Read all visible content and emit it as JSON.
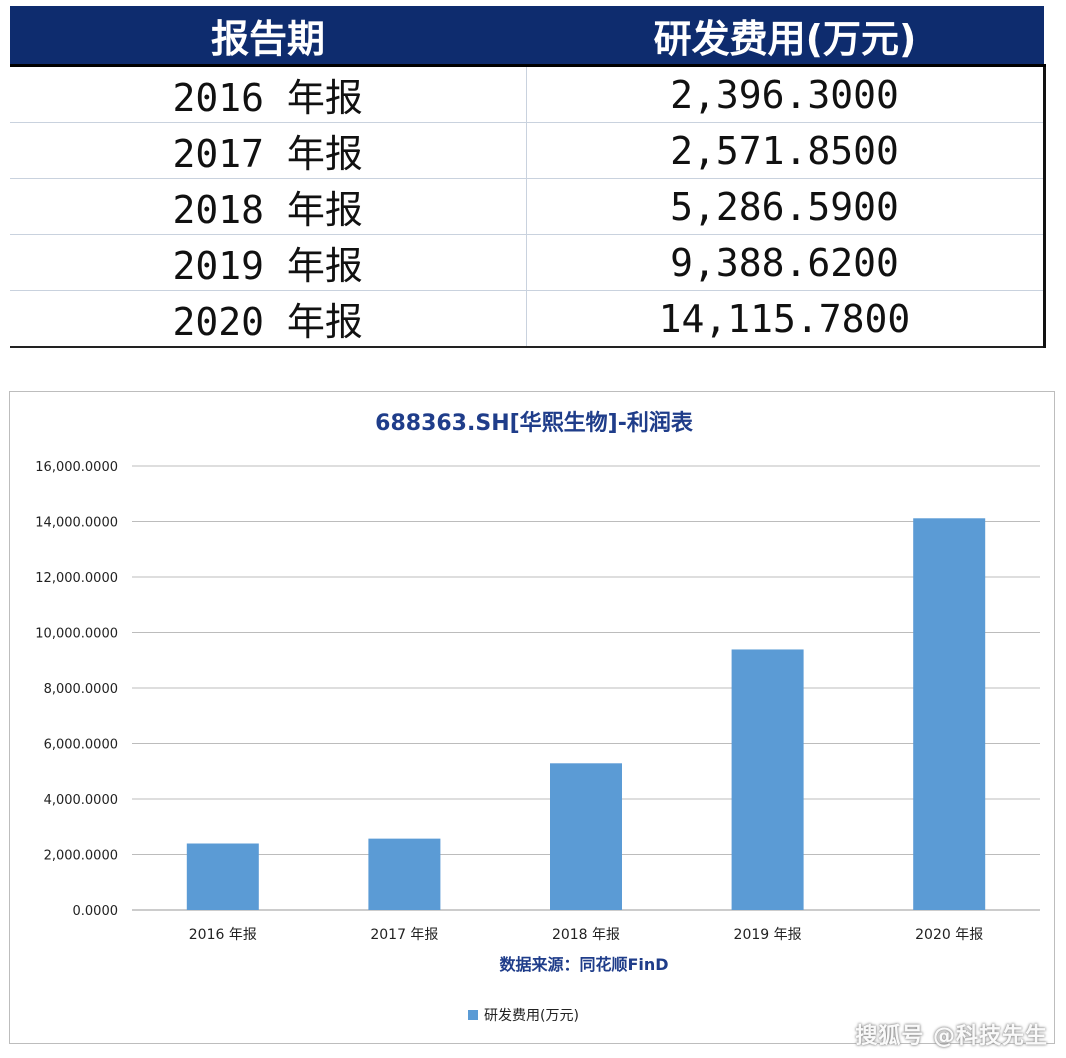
{
  "table": {
    "headers": [
      "报告期",
      "研发费用(万元)"
    ],
    "rows": [
      {
        "period": "2016 年报",
        "value": "2,396.3000"
      },
      {
        "period": "2017 年报",
        "value": "2,571.8500"
      },
      {
        "period": "2018 年报",
        "value": "5,286.5900"
      },
      {
        "period": "2019 年报",
        "value": "9,388.6200"
      },
      {
        "period": "2020 年报",
        "value": "14,115.7800"
      }
    ]
  },
  "chart_data": {
    "type": "bar",
    "title": "688363.SH[华熙生物]-利润表",
    "categories": [
      "2016 年报",
      "2017 年报",
      "2018 年报",
      "2019 年报",
      "2020 年报"
    ],
    "series": [
      {
        "name": "研发费用(万元)",
        "values": [
          2396.3,
          2571.85,
          5286.59,
          9388.62,
          14115.78
        ],
        "color": "#5b9bd5"
      }
    ],
    "ylim": [
      0,
      16000
    ],
    "yticks": [
      0,
      2000,
      4000,
      6000,
      8000,
      10000,
      12000,
      14000,
      16000
    ],
    "ytick_labels": [
      "0.0000",
      "2,000.0000",
      "4,000.0000",
      "6,000.0000",
      "8,000.0000",
      "10,000.0000",
      "12,000.0000",
      "14,000.0000",
      "16,000.0000"
    ],
    "grid": true,
    "legend": "bottom",
    "source_note": "数据来源：同花顺FinD"
  },
  "watermark": "搜狐号 @科技先生"
}
